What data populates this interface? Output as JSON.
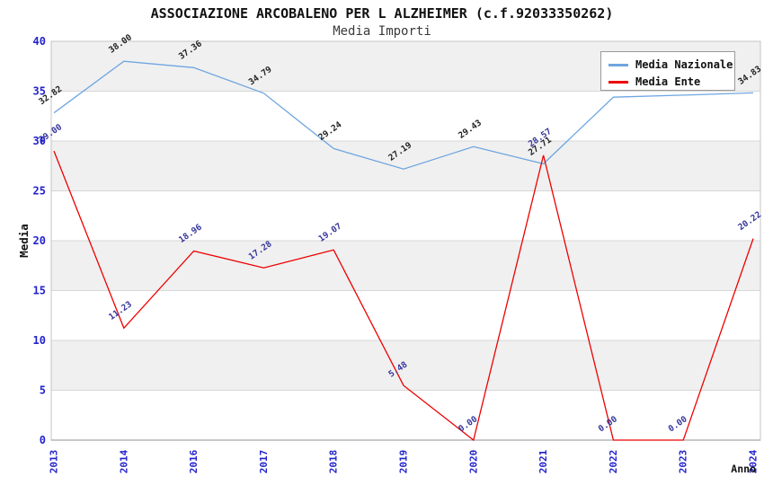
{
  "chart_data": {
    "type": "line",
    "title": "ASSOCIAZIONE ARCOBALENO PER L ALZHEIMER (c.f.92033350262)",
    "subtitle": "Media Importi",
    "xlabel": "Anno",
    "ylabel": "Media",
    "ylim": [
      0,
      40
    ],
    "ytick_step": 5,
    "yticks": [
      0,
      5,
      10,
      15,
      20,
      25,
      30,
      35,
      40
    ],
    "categories": [
      "2013",
      "2014",
      "2016",
      "2017",
      "2018",
      "2019",
      "2020",
      "2021",
      "2022",
      "2023",
      "2024"
    ],
    "series": [
      {
        "name": "Media Nazionale",
        "color": "#6EA6E0",
        "label_color": "#222222",
        "values": [
          32.82,
          38.0,
          37.36,
          34.79,
          29.24,
          27.19,
          29.43,
          27.71,
          34.4,
          34.6,
          34.83
        ],
        "point_labels": [
          "32.82",
          "38.00",
          "37.36",
          "34.79",
          "29.24",
          "27.19",
          "29.43",
          "27.71",
          "",
          "",
          "34.83"
        ]
      },
      {
        "name": "Media Ente",
        "color": "#EE0000",
        "label_color": "#35359B",
        "values": [
          29.0,
          11.23,
          18.96,
          17.28,
          19.07,
          5.48,
          0.0,
          28.57,
          0.0,
          0.0,
          20.22
        ],
        "point_labels": [
          "29.00",
          "11.23",
          "18.96",
          "17.28",
          "19.07",
          "5.48",
          "0.00",
          "28.57",
          "0.00",
          "0.00",
          "20.22"
        ]
      }
    ],
    "legend": {
      "position": "top-right"
    },
    "grid": "horizontal",
    "band_colors": [
      "#ffffff",
      "#f0f0f0"
    ],
    "gridline_color": "#d7d7d7",
    "border_color": "#c4c4c4",
    "axis_line_color": "#919191",
    "tick_label_color": "#2222CC"
  }
}
